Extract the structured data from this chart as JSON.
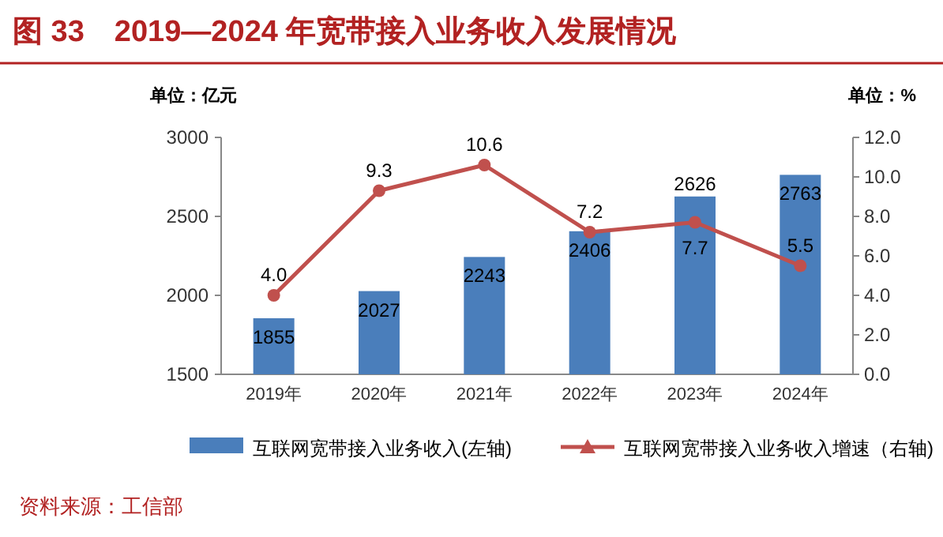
{
  "chart_data": {
    "type": "bar",
    "title": "图 33　2019—2024 年宽带接入业务收入发展情况",
    "ylabel": "单位：亿元",
    "y2label": "单位：%",
    "categories": [
      "2019年",
      "2020年",
      "2021年",
      "2022年",
      "2023年",
      "2024年"
    ],
    "series": [
      {
        "name": "互联网宽带接入业务收入(左轴)",
        "color": "#4a7ebb",
        "values": [
          1855,
          2027,
          2243,
          2406,
          2626,
          2763
        ]
      },
      {
        "name": "互联网宽带接入业务收入增速（右轴)",
        "type": "line",
        "axis": "y2",
        "color": "#c0504d",
        "values": [
          4.0,
          9.3,
          10.6,
          7.2,
          7.7,
          5.5
        ],
        "value_labels": [
          "4.0",
          "9.3",
          "10.6",
          "7.2",
          "7.7",
          "5.5"
        ]
      }
    ],
    "ylim": [
      1500,
      3000
    ],
    "yticks": [
      1500,
      2000,
      2500,
      3000
    ],
    "y2lim": [
      0,
      12
    ],
    "y2ticks": [
      {
        "value": 0,
        "label": "0.0"
      },
      {
        "value": 2,
        "label": "2.0"
      },
      {
        "value": 4,
        "label": "4.0"
      },
      {
        "value": 6,
        "label": "6.0"
      },
      {
        "value": 8,
        "label": "8.0"
      },
      {
        "value": 10,
        "label": "10.0"
      },
      {
        "value": 12,
        "label": "12.0"
      }
    ],
    "data_labels": true,
    "legend": "bottom",
    "marker": "circle",
    "annotations": [
      "资料来源：工信部"
    ]
  }
}
